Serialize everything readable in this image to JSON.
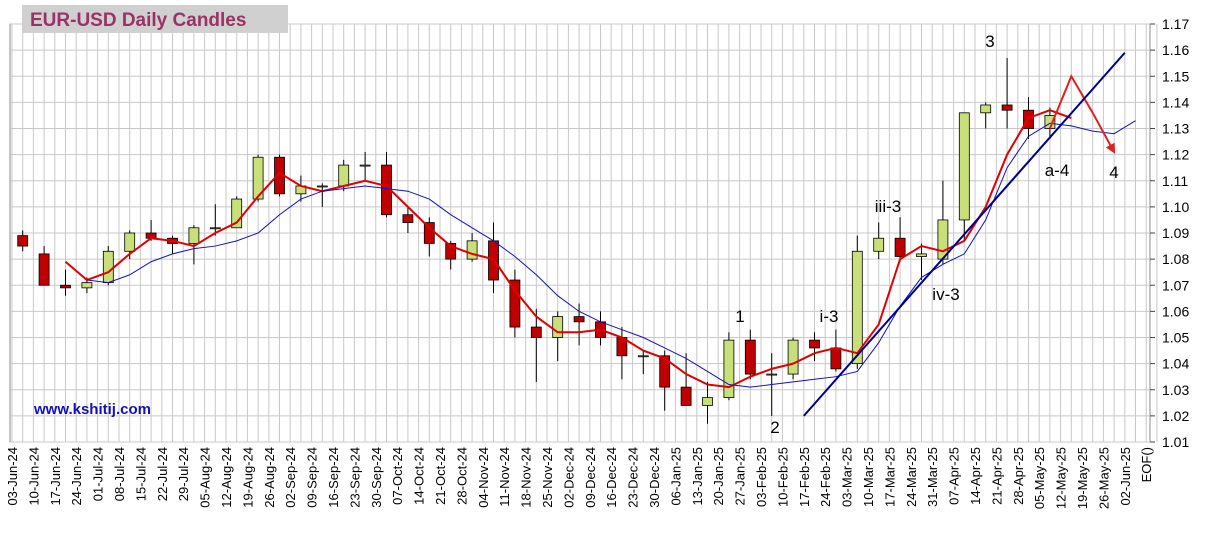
{
  "chart_data": {
    "type": "candlestick",
    "title": "EUR-USD Daily  Candles",
    "source": "www.kshitij.com",
    "categories": [
      "03-Jun-24",
      "10-Jun-24",
      "17-Jun-24",
      "24-Jun-24",
      "01-Jul-24",
      "08-Jul-24",
      "15-Jul-24",
      "22-Jul-24",
      "29-Jul-24",
      "05-Aug-24",
      "12-Aug-24",
      "19-Aug-24",
      "26-Aug-24",
      "02-Sep-24",
      "09-Sep-24",
      "16-Sep-24",
      "23-Sep-24",
      "30-Sep-24",
      "07-Oct-24",
      "14-Oct-24",
      "21-Oct-24",
      "28-Oct-24",
      "04-Nov-24",
      "11-Nov-24",
      "18-Nov-24",
      "25-Nov-24",
      "02-Dec-24",
      "09-Dec-24",
      "16-Dec-24",
      "23-Dec-24",
      "30-Dec-24",
      "06-Jan-25",
      "13-Jan-25",
      "20-Jan-25",
      "27-Jan-25",
      "03-Feb-25",
      "10-Feb-25",
      "17-Feb-25",
      "24-Feb-25",
      "03-Mar-25",
      "10-Mar-25",
      "17-Mar-25",
      "24-Mar-25",
      "31-Mar-25",
      "07-Apr-25",
      "14-Apr-25",
      "21-Apr-25",
      "28-Apr-25",
      "05-May-25",
      "12-May-25",
      "19-May-25",
      "26-May-25",
      "02-Jun-25",
      "EOF()"
    ],
    "open": [
      1.089,
      1.082,
      1.07,
      1.069,
      1.071,
      1.083,
      1.09,
      1.088,
      1.086,
      1.092,
      1.092,
      1.103,
      1.119,
      1.105,
      1.108,
      1.108,
      1.116,
      1.116,
      1.097,
      1.094,
      1.086,
      1.08,
      1.087,
      1.072,
      1.054,
      1.05,
      1.058,
      1.056,
      1.05,
      1.043,
      1.043,
      1.031,
      1.024,
      1.027,
      1.049,
      1.036,
      1.036,
      1.049,
      1.046,
      1.04,
      1.083,
      1.088,
      1.081,
      1.08,
      1.095,
      1.136,
      1.139,
      1.137,
      1.13,
      null,
      null,
      null,
      null,
      null
    ],
    "high": [
      1.091,
      1.085,
      1.076,
      1.073,
      1.085,
      1.091,
      1.095,
      1.089,
      1.093,
      1.101,
      1.104,
      1.12,
      1.12,
      1.112,
      1.109,
      1.118,
      1.121,
      1.121,
      1.1,
      1.096,
      1.087,
      1.09,
      1.094,
      1.076,
      1.061,
      1.06,
      1.063,
      1.06,
      1.054,
      1.045,
      1.045,
      1.044,
      1.033,
      1.052,
      1.053,
      1.044,
      1.05,
      1.052,
      1.053,
      1.089,
      1.094,
      1.096,
      1.086,
      1.11,
      1.136,
      1.14,
      1.157,
      1.142,
      1.138,
      null,
      null,
      null,
      null,
      null
    ],
    "low": [
      1.083,
      1.07,
      1.066,
      1.067,
      1.07,
      1.08,
      1.087,
      1.082,
      1.078,
      1.089,
      1.092,
      1.102,
      1.104,
      1.102,
      1.1,
      1.106,
      1.11,
      1.096,
      1.09,
      1.081,
      1.076,
      1.079,
      1.067,
      1.05,
      1.033,
      1.041,
      1.047,
      1.047,
      1.034,
      1.036,
      1.022,
      1.024,
      1.017,
      1.026,
      1.034,
      1.02,
      1.034,
      1.041,
      1.037,
      1.038,
      1.08,
      1.079,
      1.072,
      1.078,
      1.087,
      1.13,
      1.13,
      1.126,
      1.126,
      null,
      null,
      null,
      null,
      null
    ],
    "close": [
      1.085,
      1.07,
      1.069,
      1.071,
      1.083,
      1.09,
      1.088,
      1.086,
      1.092,
      1.092,
      1.103,
      1.119,
      1.105,
      1.108,
      1.108,
      1.116,
      1.116,
      1.097,
      1.094,
      1.086,
      1.08,
      1.087,
      1.072,
      1.054,
      1.05,
      1.058,
      1.056,
      1.05,
      1.043,
      1.043,
      1.031,
      1.024,
      1.027,
      1.049,
      1.036,
      1.036,
      1.049,
      1.046,
      1.038,
      1.083,
      1.088,
      1.081,
      1.082,
      1.095,
      1.136,
      1.139,
      1.137,
      1.13,
      1.135,
      null,
      null,
      null,
      null,
      null
    ],
    "up_color": "#c9e07a",
    "down_color": "#c00000",
    "lines": [
      {
        "color": "#e00000",
        "width": 2,
        "values": [
          null,
          null,
          1.079,
          1.072,
          1.075,
          1.082,
          1.088,
          1.087,
          1.085,
          1.09,
          1.094,
          1.104,
          1.113,
          1.108,
          1.106,
          1.108,
          1.11,
          1.108,
          1.1,
          1.092,
          1.085,
          1.082,
          1.08,
          1.068,
          1.058,
          1.052,
          1.052,
          1.053,
          1.05,
          1.045,
          1.042,
          1.036,
          1.032,
          1.031,
          1.035,
          1.038,
          1.04,
          1.044,
          1.046,
          1.044,
          1.055,
          1.08,
          1.085,
          1.083,
          1.087,
          1.1,
          1.12,
          1.134,
          1.137,
          1.134,
          null,
          null,
          null,
          null
        ]
      },
      {
        "color": "#1010c0",
        "width": 1,
        "values": [
          null,
          null,
          null,
          1.072,
          1.071,
          1.074,
          1.079,
          1.082,
          1.084,
          1.085,
          1.087,
          1.09,
          1.097,
          1.103,
          1.106,
          1.107,
          1.108,
          1.107,
          1.106,
          1.103,
          1.097,
          1.092,
          1.087,
          1.081,
          1.074,
          1.066,
          1.06,
          1.056,
          1.053,
          1.05,
          1.046,
          1.042,
          1.037,
          1.032,
          1.031,
          1.032,
          1.033,
          1.034,
          1.035,
          1.037,
          1.048,
          1.062,
          1.073,
          1.078,
          1.082,
          1.095,
          1.115,
          1.127,
          1.132,
          1.131,
          1.129,
          1.128,
          1.133,
          null
        ]
      },
      {
        "color": "#e02020",
        "width": 2,
        "arrow": true,
        "values": [
          null,
          null,
          null,
          null,
          null,
          null,
          null,
          null,
          null,
          null,
          null,
          null,
          null,
          null,
          null,
          null,
          null,
          null,
          null,
          null,
          null,
          null,
          null,
          null,
          null,
          null,
          null,
          null,
          null,
          null,
          null,
          null,
          null,
          null,
          null,
          null,
          null,
          null,
          null,
          null,
          null,
          null,
          null,
          null,
          null,
          null,
          null,
          null,
          1.13,
          1.15,
          1.136,
          1.121,
          null,
          null
        ]
      }
    ],
    "trendline": {
      "color": "#00008b",
      "x": [
        "17-Feb-25",
        "02-Jun-25"
      ],
      "values": [
        1.02,
        1.159
      ]
    },
    "annotations": [
      "1",
      "2",
      "i-3",
      "iii-3",
      "iv-3",
      "3",
      "a-4",
      "4"
    ],
    "ylim": [
      1.01,
      1.17
    ],
    "yticks": [
      1.01,
      1.02,
      1.03,
      1.04,
      1.05,
      1.06,
      1.07,
      1.08,
      1.09,
      {
        "value": 1.1,
        "label": "1.10"
      },
      1.11,
      1.12,
      1.13,
      1.14,
      1.15,
      1.16,
      1.17
    ],
    "grid": true
  }
}
